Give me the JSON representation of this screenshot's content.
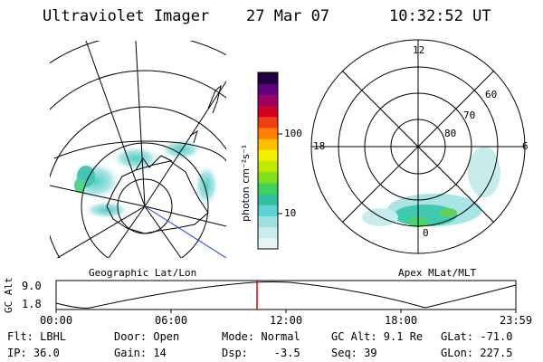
{
  "header": {
    "instrument": "Ultraviolet Imager",
    "date": "27 Mar 07",
    "time": "10:32:52 UT"
  },
  "colorbar": {
    "unit_label": "photon cm⁻²s⁻¹",
    "tick_100": "100",
    "tick_10": "10",
    "colors": [
      "#e8f4f4",
      "#c8ecec",
      "#a0e0e0",
      "#60d0d0",
      "#30c0a0",
      "#40d060",
      "#80e020",
      "#c0e800",
      "#f0f000",
      "#ffc000",
      "#ff8000",
      "#f04010",
      "#d00020",
      "#a00060",
      "#600080",
      "#200040"
    ]
  },
  "left_map": {
    "projection_label": "Geographic Lat/Lon"
  },
  "right_map": {
    "projection_label": "Apex MLat/MLT",
    "mlt_12": "12",
    "mlt_18": "18",
    "mlt_6": "6",
    "mlt_0": "0",
    "lat_60": "60",
    "lat_70": "70",
    "lat_80": "80"
  },
  "altitude_plot": {
    "ylabel": "GC Alt",
    "y_max": "9.0",
    "y_min": "1.8",
    "x_ticks": [
      "00:00",
      "06:00",
      "12:00",
      "18:00",
      "23:59"
    ],
    "marker_color": "#e00000"
  },
  "footer": {
    "flt": "Flt: LBHL",
    "door": "Door: Open",
    "mode": "Mode: Normal",
    "gc_alt": "GC Alt: 9.1 Re",
    "glat": "GLat: -71.0",
    "ip": "IP: 36.0",
    "gain": "Gain: 14",
    "dsp": "Dsp:    -3.5",
    "seq": "Seq: 39",
    "glon": "GLon: 227.5"
  }
}
